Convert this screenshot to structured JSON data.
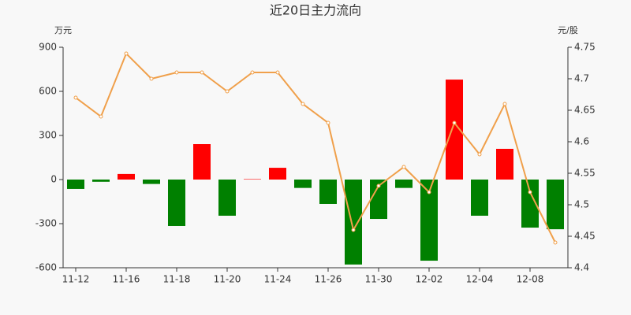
{
  "chart_data": {
    "type": "bar",
    "title": "近20日主力流向",
    "y_label": "万元",
    "y2_label": "元/股",
    "categories": [
      "11-12",
      null,
      "11-16",
      null,
      "11-18",
      null,
      "11-20",
      null,
      "11-24",
      null,
      "11-26",
      null,
      "11-30",
      null,
      "12-02",
      null,
      "12-04",
      null,
      "12-08",
      null
    ],
    "positive_color": "#ff0000",
    "negative_color": "#008000",
    "series": [
      {
        "type": "bar",
        "values": [
          -64,
          -15,
          38,
          -30,
          -316,
          241,
          -246,
          3,
          80,
          -57,
          -166,
          -578,
          -268,
          -57,
          -552,
          680,
          -246,
          209,
          -327,
          -338
        ]
      },
      {
        "type": "line",
        "axis": "y2",
        "color": "#f0a04b",
        "values": [
          4.67,
          4.64,
          4.74,
          4.7,
          4.71,
          4.71,
          4.68,
          4.71,
          4.71,
          4.66,
          4.63,
          4.46,
          4.53,
          4.56,
          4.52,
          4.63,
          4.58,
          4.66,
          4.52,
          4.44
        ]
      }
    ],
    "ylim": [
      -600,
      900
    ],
    "yticks": [
      -600,
      -300,
      0,
      300,
      600,
      900
    ],
    "y2lim": [
      4.4,
      4.75
    ],
    "y2ticks": [
      4.4,
      4.45,
      4.5,
      4.55,
      4.6,
      4.65,
      4.7,
      4.75
    ],
    "grid": false
  }
}
